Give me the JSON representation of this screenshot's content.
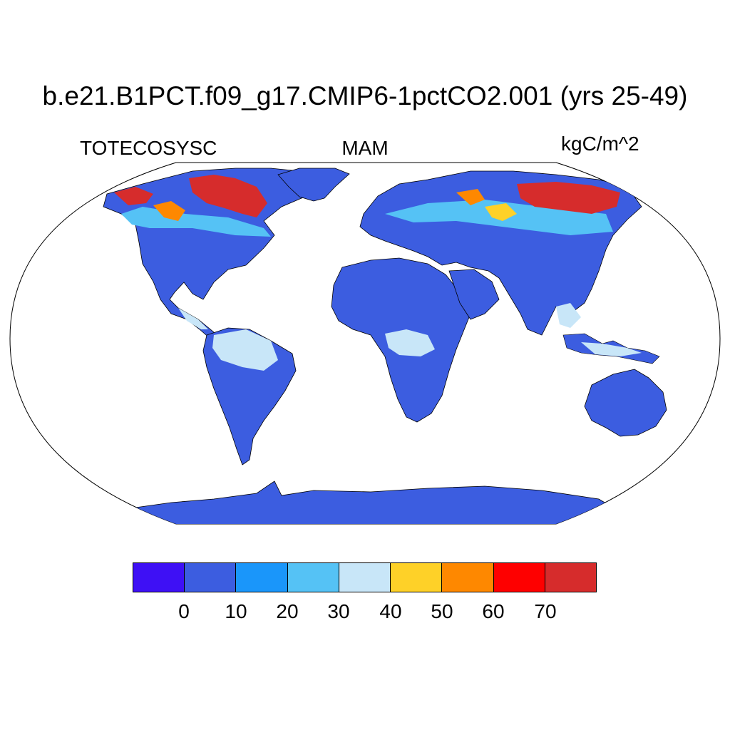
{
  "title": "b.e21.B1PCT.f09_g17.CMIP6-1pctCO2.001 (yrs 25-49)",
  "variable": "TOTECOSYSC",
  "season": "MAM",
  "units": "kgC/m^2",
  "colorbar": {
    "colors": [
      "#3e10f5",
      "#3c5de0",
      "#1a96fa",
      "#55c2f5",
      "#c8e6f8",
      "#fed128",
      "#fe8800",
      "#fe0000",
      "#d62c2c"
    ],
    "ticks": [
      "0",
      "10",
      "20",
      "30",
      "40",
      "50",
      "60",
      "70"
    ]
  },
  "map": {
    "projection": "robinson",
    "land_color": "#3c5de0",
    "ocean_color": "#ffffff"
  }
}
